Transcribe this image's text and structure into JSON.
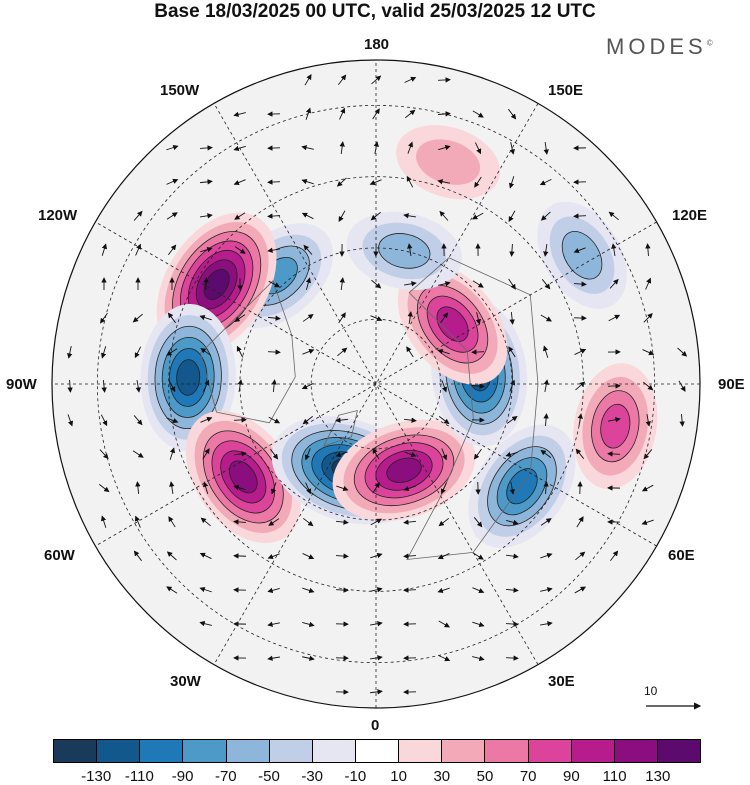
{
  "header": {
    "title": "Base 18/03/2025 00 UTC, valid 25/03/2025 12 UTC",
    "brand": "MODES",
    "brand_mark": "©"
  },
  "map": {
    "projection": "north-polar-stereographic",
    "longitude_labels": {
      "top": "180",
      "bottom": "0",
      "left": "90W",
      "right": "90E",
      "upper_left_1": "150W",
      "upper_left_2": "120W",
      "upper_right_1": "150E",
      "upper_right_2": "120E",
      "lower_left_1": "60W",
      "lower_left_2": "30W",
      "lower_right_1": "60E",
      "lower_right_2": "30E"
    },
    "reference_vector_label": "10",
    "colors": {
      "background": "#f2f2f2",
      "coast": "#555555",
      "grid": "#222222"
    }
  },
  "anomalies": [
    {
      "lon": -138,
      "r": 0.45,
      "sign": "neg",
      "magnitude": 70
    },
    {
      "lon": -122,
      "r": 0.58,
      "sign": "pos",
      "magnitude": 130
    },
    {
      "lon": -92,
      "r": 0.58,
      "sign": "neg",
      "magnitude": 110
    },
    {
      "lon": -55,
      "r": 0.5,
      "sign": "pos",
      "magnitude": 110
    },
    {
      "lon": -18,
      "r": 0.28,
      "sign": "neg",
      "magnitude": 130
    },
    {
      "lon": 18,
      "r": 0.28,
      "sign": "pos",
      "magnitude": 110
    },
    {
      "lon": 55,
      "r": 0.55,
      "sign": "neg",
      "magnitude": 90
    },
    {
      "lon": 80,
      "r": 0.75,
      "sign": "pos",
      "magnitude": 70
    },
    {
      "lon": 96,
      "r": 0.32,
      "sign": "neg",
      "magnitude": 110
    },
    {
      "lon": 128,
      "r": 0.3,
      "sign": "pos",
      "magnitude": 90
    },
    {
      "lon": 122,
      "r": 0.75,
      "sign": "neg",
      "magnitude": 50
    },
    {
      "lon": 168,
      "r": 0.42,
      "sign": "neg",
      "magnitude": 50
    },
    {
      "lon": 162,
      "r": 0.72,
      "sign": "pos",
      "magnitude": 30
    }
  ],
  "colorbar": {
    "colors": [
      "#1a3a5c",
      "#12588c",
      "#1f78b7",
      "#4d9ac8",
      "#8eb6da",
      "#c0cfe7",
      "#e6e5f2",
      "#ffffff",
      "#f9d7da",
      "#f3aab8",
      "#ec79a5",
      "#dc449b",
      "#b71c8c",
      "#8a0e7d",
      "#5c0a6d"
    ],
    "labels": [
      "-130",
      "-110",
      "-90",
      "-70",
      "-50",
      "-30",
      "-10",
      "10",
      "30",
      "50",
      "70",
      "90",
      "110",
      "130"
    ]
  }
}
